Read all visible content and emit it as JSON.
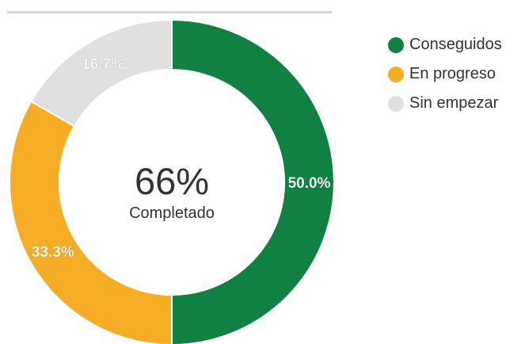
{
  "chart_data": {
    "type": "pie",
    "subtype": "donut",
    "categories": [
      "Conseguidos",
      "En progreso",
      "Sin empezar"
    ],
    "values": [
      50.0,
      33.3,
      16.7
    ],
    "labels": [
      "50.0%",
      "33.3%",
      "16.7%"
    ],
    "colors": [
      "#118043",
      "#f5ad25",
      "#e0e0e0"
    ],
    "center_value": "66%",
    "center_label": "Completado",
    "legend_position": "top-right"
  }
}
